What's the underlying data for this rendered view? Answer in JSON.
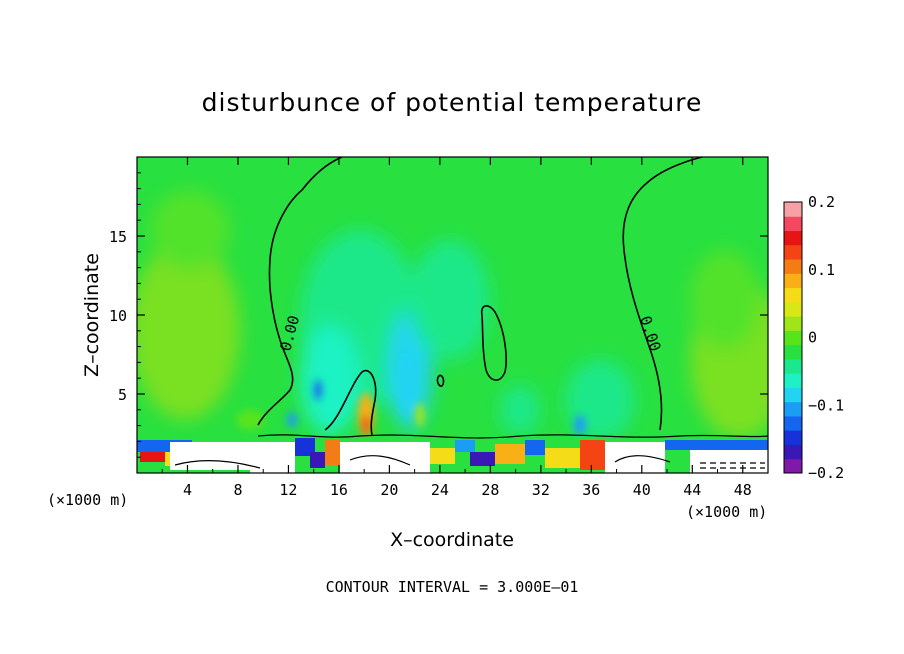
{
  "chart_data": {
    "type": "heatmap",
    "title": "disturbunce of potential temperature",
    "xlabel": "X–coordinate",
    "ylabel": "Z–coordinate",
    "x_unit_label": "(×1000 m)",
    "x_unit_label_right": "(×1000 m)",
    "xlim": [
      0,
      50
    ],
    "ylim": [
      0,
      20
    ],
    "x_ticks": [
      4,
      8,
      12,
      16,
      20,
      24,
      28,
      32,
      36,
      40,
      44,
      48
    ],
    "x_tick_labels": [
      "4",
      "8",
      "12",
      "16",
      "20",
      "24",
      "28",
      "32",
      "36",
      "40",
      "44",
      "48"
    ],
    "y_ticks": [
      5,
      10,
      15
    ],
    "y_tick_labels": [
      "5",
      "10",
      "15"
    ],
    "colorbar": {
      "range": [
        -0.2,
        0.2
      ],
      "tick_values": [
        0.2,
        0.1,
        0,
        -0.1,
        -0.2
      ],
      "tick_labels": [
        "0.2",
        "0.1",
        "0",
        "−0.1",
        "−0.2"
      ],
      "levels": [
        "#7f1aa8",
        "#3a18b8",
        "#1632d8",
        "#1466f0",
        "#1a9ef4",
        "#22d4f2",
        "#1ef2c4",
        "#1ae88a",
        "#28e040",
        "#58e41a",
        "#a0e41a",
        "#d8e816",
        "#f4dc18",
        "#f8b016",
        "#f47c14",
        "#f44414",
        "#e81414",
        "#f44860",
        "#f8a0a8"
      ]
    },
    "contour_interval_label": "CONTOUR INTERVAL = 3.000E–01",
    "contour_labels": [
      "0.00",
      "0.00"
    ],
    "background_value": 0.0
  }
}
